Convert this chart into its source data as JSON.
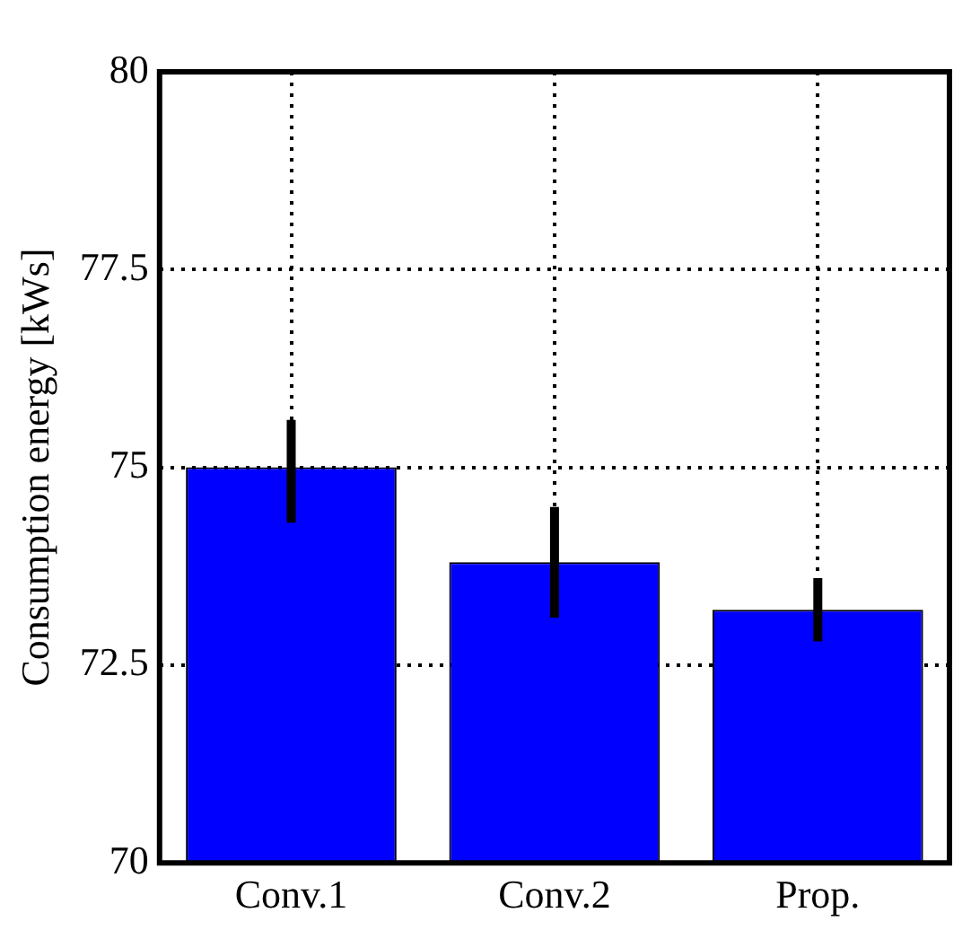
{
  "chart_data": {
    "type": "bar",
    "ylabel": "Consumption energy [kWs]",
    "categories": [
      "Conv.1",
      "Conv.2",
      "Prop."
    ],
    "series": [
      {
        "color": "#0000ff",
        "values": [
          75.0,
          73.8,
          73.2
        ],
        "errors": [
          [
            74.3,
            75.6
          ],
          [
            73.1,
            74.5
          ],
          [
            72.8,
            73.6
          ]
        ]
      }
    ],
    "ylim": [
      70,
      80
    ],
    "yticks": [
      70,
      {
        "value": 72.5,
        "label": "72.5"
      },
      75,
      {
        "value": 77.5,
        "label": "77.5"
      },
      80
    ],
    "grid": true,
    "legend": false
  }
}
